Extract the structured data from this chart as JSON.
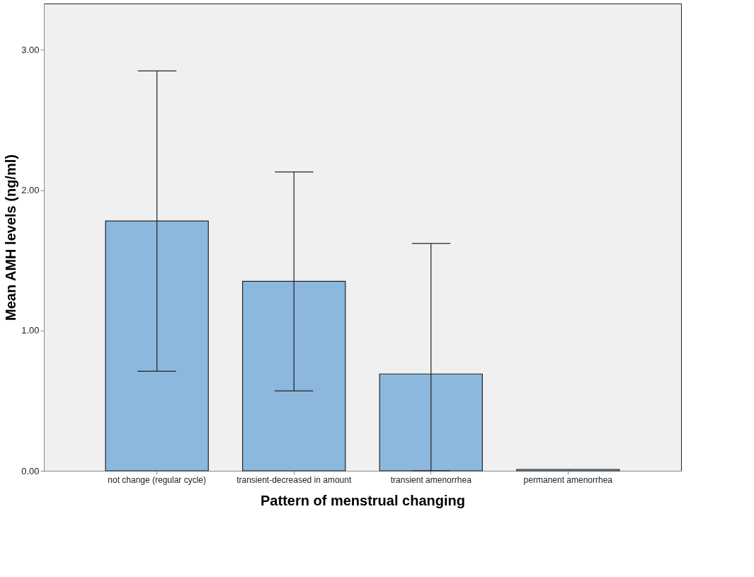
{
  "chart_data": {
    "type": "bar",
    "xlabel": "Pattern of menstrual changing",
    "ylabel": "Mean AMH levels (ng/ml)",
    "categories": [
      "not change (regular cycle)",
      "transient-decreased in amount",
      "transient amenorrhea",
      "permanent amenorrhea"
    ],
    "values": [
      1.78,
      1.35,
      0.69,
      0.01
    ],
    "errors": [
      [
        0.71,
        2.85
      ],
      [
        0.57,
        2.13
      ],
      [
        0.0,
        1.62
      ],
      null
    ],
    "color": "#8cb8de",
    "ylim": [
      0,
      3.33
    ],
    "yticks": [
      {
        "value": 0,
        "label": "0.00"
      },
      {
        "value": 1,
        "label": "1.00"
      },
      {
        "value": 2,
        "label": "2.00"
      },
      {
        "value": 3,
        "label": "3.00"
      }
    ],
    "grid": false
  }
}
